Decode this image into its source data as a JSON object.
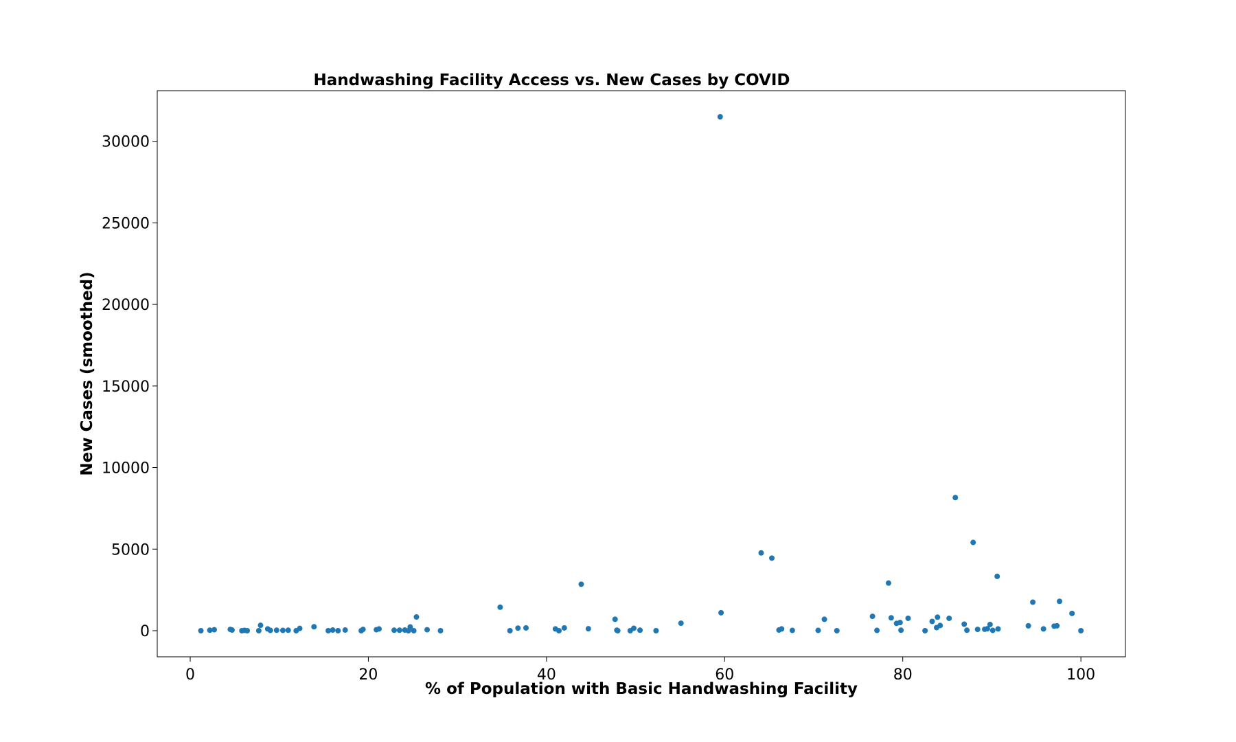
{
  "chart_data": {
    "type": "scatter",
    "title": "Handwashing Facility Access vs. New Cases by COVID",
    "xlabel": "% of Population with Basic Handwashing Facility",
    "ylabel": "New Cases (smoothed)",
    "xlim": [
      -3.7,
      105
    ],
    "ylim": [
      -1600,
      33100
    ],
    "xticks": [
      0,
      20,
      40,
      60,
      80,
      100
    ],
    "yticks": [
      0,
      5000,
      10000,
      15000,
      20000,
      25000,
      30000
    ],
    "grid": false,
    "legend": "none",
    "marker_color": "#1f77b4",
    "points": [
      {
        "x": 1.2,
        "y": 0
      },
      {
        "x": 2.2,
        "y": 30
      },
      {
        "x": 2.7,
        "y": 60
      },
      {
        "x": 4.5,
        "y": 80
      },
      {
        "x": 4.7,
        "y": 40
      },
      {
        "x": 5.8,
        "y": 0
      },
      {
        "x": 6.1,
        "y": 20
      },
      {
        "x": 6.4,
        "y": 0
      },
      {
        "x": 7.7,
        "y": 0
      },
      {
        "x": 7.9,
        "y": 330
      },
      {
        "x": 8.7,
        "y": 110
      },
      {
        "x": 9.0,
        "y": 20
      },
      {
        "x": 9.7,
        "y": 30
      },
      {
        "x": 10.4,
        "y": 20
      },
      {
        "x": 11.0,
        "y": 30
      },
      {
        "x": 11.9,
        "y": 0
      },
      {
        "x": 12.3,
        "y": 140
      },
      {
        "x": 13.9,
        "y": 240
      },
      {
        "x": 15.5,
        "y": 0
      },
      {
        "x": 16.0,
        "y": 40
      },
      {
        "x": 16.6,
        "y": 0
      },
      {
        "x": 17.4,
        "y": 40
      },
      {
        "x": 19.2,
        "y": 0
      },
      {
        "x": 19.4,
        "y": 80
      },
      {
        "x": 20.9,
        "y": 60
      },
      {
        "x": 21.2,
        "y": 110
      },
      {
        "x": 22.9,
        "y": 30
      },
      {
        "x": 23.5,
        "y": 30
      },
      {
        "x": 24.1,
        "y": 40
      },
      {
        "x": 24.5,
        "y": 0
      },
      {
        "x": 24.7,
        "y": 230
      },
      {
        "x": 25.1,
        "y": 0
      },
      {
        "x": 25.4,
        "y": 840
      },
      {
        "x": 26.6,
        "y": 60
      },
      {
        "x": 28.1,
        "y": 0
      },
      {
        "x": 34.8,
        "y": 1440
      },
      {
        "x": 35.9,
        "y": 0
      },
      {
        "x": 36.8,
        "y": 160
      },
      {
        "x": 37.7,
        "y": 170
      },
      {
        "x": 41.0,
        "y": 110
      },
      {
        "x": 41.4,
        "y": 0
      },
      {
        "x": 42.0,
        "y": 170
      },
      {
        "x": 43.9,
        "y": 2850
      },
      {
        "x": 44.7,
        "y": 120
      },
      {
        "x": 47.7,
        "y": 700
      },
      {
        "x": 47.9,
        "y": 30
      },
      {
        "x": 48.0,
        "y": 0
      },
      {
        "x": 49.4,
        "y": 0
      },
      {
        "x": 49.8,
        "y": 150
      },
      {
        "x": 50.5,
        "y": 30
      },
      {
        "x": 52.3,
        "y": 0
      },
      {
        "x": 55.1,
        "y": 460
      },
      {
        "x": 59.5,
        "y": 31500
      },
      {
        "x": 59.6,
        "y": 1100
      },
      {
        "x": 64.1,
        "y": 4770
      },
      {
        "x": 65.3,
        "y": 4450
      },
      {
        "x": 66.1,
        "y": 40
      },
      {
        "x": 66.4,
        "y": 110
      },
      {
        "x": 67.6,
        "y": 20
      },
      {
        "x": 70.5,
        "y": 20
      },
      {
        "x": 71.2,
        "y": 700
      },
      {
        "x": 72.6,
        "y": 0
      },
      {
        "x": 76.6,
        "y": 880
      },
      {
        "x": 77.1,
        "y": 20
      },
      {
        "x": 78.4,
        "y": 2920
      },
      {
        "x": 78.7,
        "y": 790
      },
      {
        "x": 79.3,
        "y": 450
      },
      {
        "x": 79.7,
        "y": 500
      },
      {
        "x": 79.8,
        "y": 30
      },
      {
        "x": 80.6,
        "y": 760
      },
      {
        "x": 82.5,
        "y": 0
      },
      {
        "x": 83.3,
        "y": 570
      },
      {
        "x": 83.8,
        "y": 190
      },
      {
        "x": 83.9,
        "y": 830
      },
      {
        "x": 84.2,
        "y": 320
      },
      {
        "x": 85.2,
        "y": 760
      },
      {
        "x": 85.9,
        "y": 8160
      },
      {
        "x": 86.9,
        "y": 400
      },
      {
        "x": 87.2,
        "y": 30
      },
      {
        "x": 87.9,
        "y": 5410
      },
      {
        "x": 88.4,
        "y": 80
      },
      {
        "x": 89.2,
        "y": 90
      },
      {
        "x": 89.5,
        "y": 120
      },
      {
        "x": 89.8,
        "y": 380
      },
      {
        "x": 90.1,
        "y": 20
      },
      {
        "x": 90.6,
        "y": 3330
      },
      {
        "x": 90.7,
        "y": 110
      },
      {
        "x": 94.1,
        "y": 300
      },
      {
        "x": 94.6,
        "y": 1750
      },
      {
        "x": 95.8,
        "y": 110
      },
      {
        "x": 97.0,
        "y": 280
      },
      {
        "x": 97.3,
        "y": 300
      },
      {
        "x": 97.6,
        "y": 1800
      },
      {
        "x": 99.0,
        "y": 1060
      },
      {
        "x": 100.0,
        "y": 0
      }
    ]
  }
}
